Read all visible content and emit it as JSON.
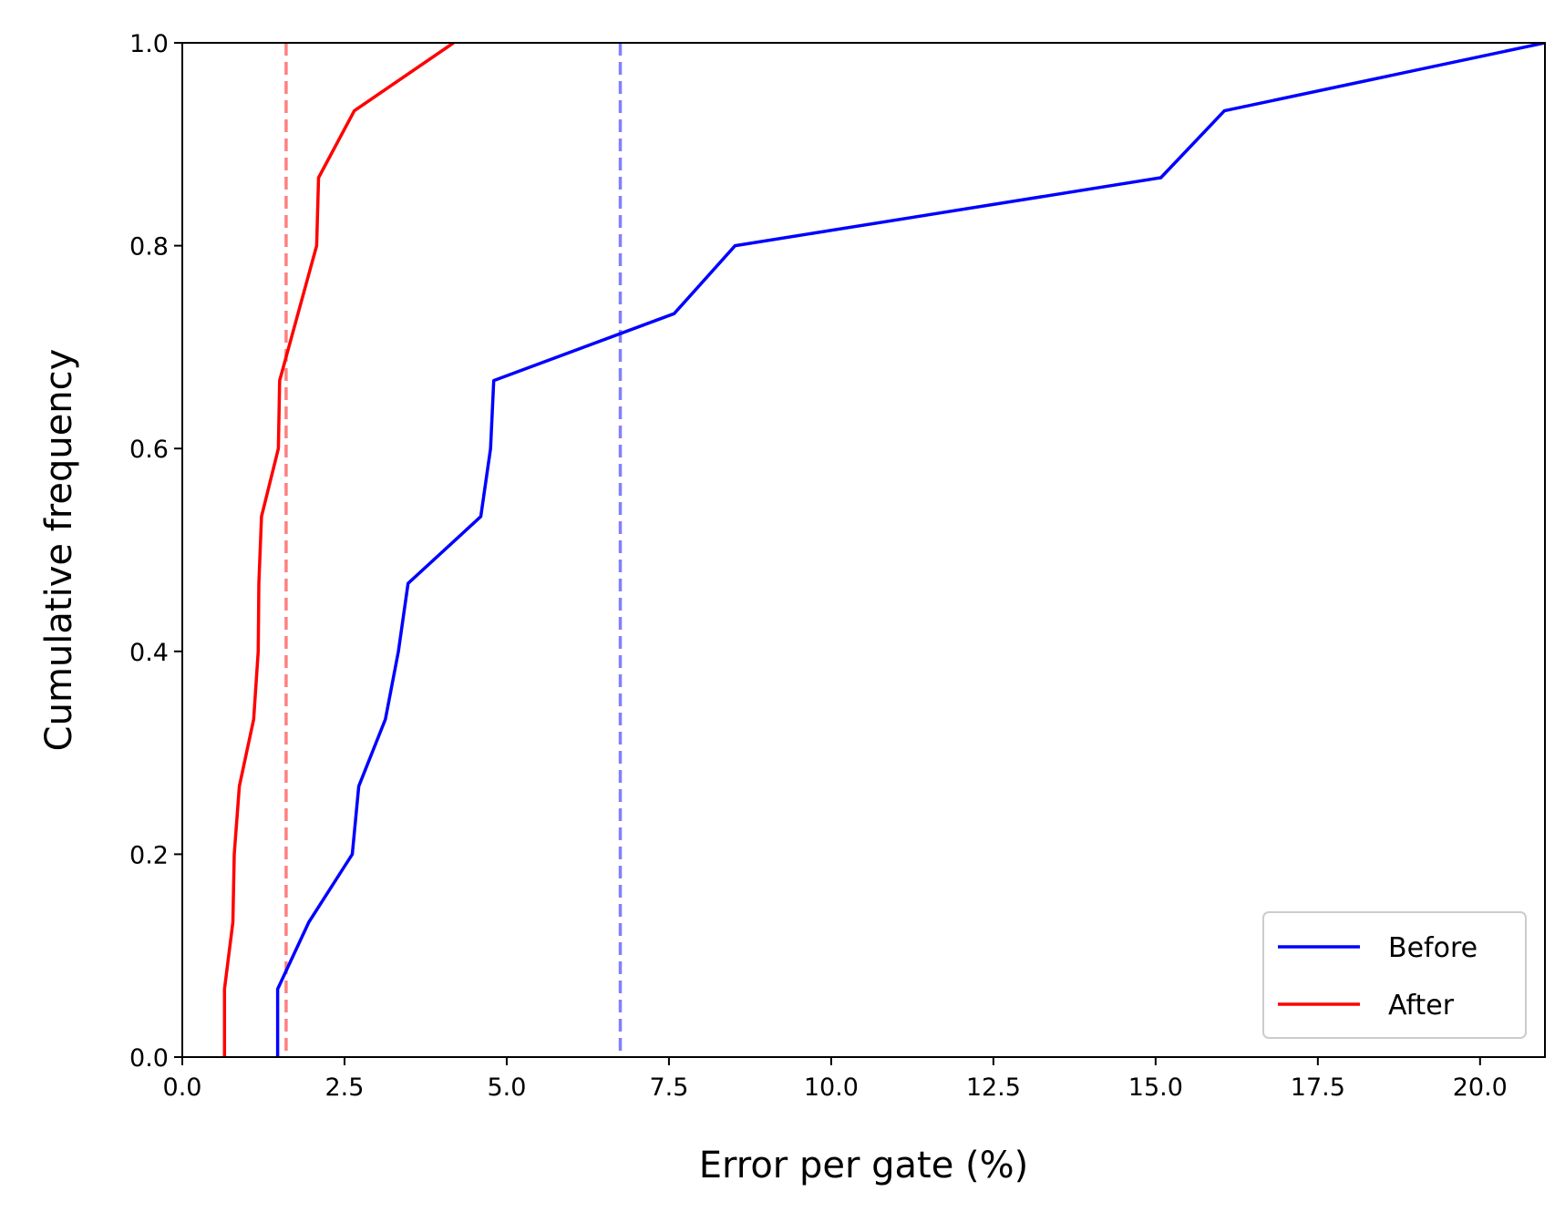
{
  "chart_data": {
    "type": "line",
    "xlabel": "Error per gate (%)",
    "ylabel": "Cumulative frequency",
    "xlim": [
      0,
      21
    ],
    "ylim": [
      0,
      1
    ],
    "x_ticks": [
      "0.0",
      "2.5",
      "5.0",
      "7.5",
      "10.0",
      "12.5",
      "15.0",
      "17.5",
      "20.0"
    ],
    "x_tick_values": [
      0,
      2.5,
      5,
      7.5,
      10,
      12.5,
      15,
      17.5,
      20
    ],
    "y_ticks": [
      "0.0",
      "0.2",
      "0.4",
      "0.6",
      "0.8",
      "1.0"
    ],
    "y_tick_values": [
      0,
      0.2,
      0.4,
      0.6,
      0.8,
      1.0
    ],
    "grid": false,
    "legend_position": "bottom-right",
    "series": [
      {
        "name": "Before",
        "color": "#0000ff",
        "x": [
          1.47,
          1.47,
          1.95,
          2.62,
          2.72,
          3.13,
          3.33,
          3.48,
          4.6,
          4.75,
          4.8,
          7.58,
          8.52,
          15.08,
          16.06,
          21.0
        ],
        "y": [
          0.0,
          0.067,
          0.133,
          0.2,
          0.267,
          0.333,
          0.4,
          0.467,
          0.533,
          0.6,
          0.667,
          0.733,
          0.8,
          0.867,
          0.933,
          1.0
        ]
      },
      {
        "name": "After",
        "color": "#ff0000",
        "x": [
          0.65,
          0.65,
          0.78,
          0.8,
          0.88,
          1.1,
          1.17,
          1.18,
          1.22,
          1.48,
          1.5,
          2.07,
          2.1,
          2.65,
          4.18
        ],
        "y": [
          0.0,
          0.067,
          0.133,
          0.2,
          0.267,
          0.333,
          0.4,
          0.467,
          0.533,
          0.6,
          0.667,
          0.8,
          0.867,
          0.933,
          1.0
        ]
      }
    ],
    "reference_lines": [
      {
        "x": 1.6,
        "color": "#ff8080",
        "style": "dashed"
      },
      {
        "x": 6.75,
        "color": "#8080ff",
        "style": "dashed"
      }
    ]
  }
}
